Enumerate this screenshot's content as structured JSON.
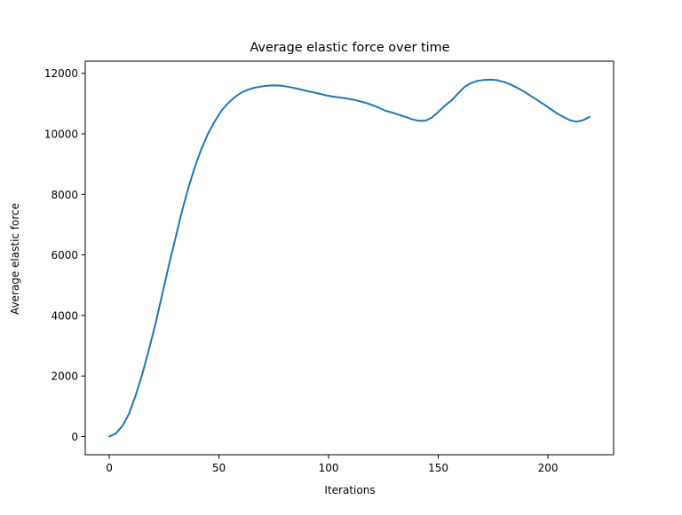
{
  "chart_data": {
    "type": "line",
    "title": "Average elastic force over time",
    "xlabel": "Iterations",
    "ylabel": "Average elastic force",
    "xlim": [
      -10.95,
      229.95
    ],
    "ylim": [
      -600,
      12400
    ],
    "xticks": [
      0,
      50,
      100,
      150,
      200
    ],
    "yticks": [
      0,
      2000,
      4000,
      6000,
      8000,
      10000,
      12000
    ],
    "grid": false,
    "legend": "none",
    "series": [
      {
        "color": "#1f77b4",
        "x": [
          0,
          3,
          6,
          9,
          12,
          15,
          18,
          21,
          24,
          27,
          30,
          33,
          36,
          39,
          42,
          45,
          48,
          51,
          54,
          57,
          60,
          63,
          66,
          69,
          72,
          75,
          78,
          81,
          84,
          87,
          90,
          93,
          96,
          99,
          102,
          105,
          108,
          111,
          114,
          117,
          120,
          123,
          126,
          129,
          132,
          135,
          138,
          141,
          144,
          147,
          150,
          153,
          156,
          159,
          162,
          165,
          168,
          171,
          174,
          177,
          180,
          183,
          186,
          189,
          192,
          195,
          198,
          201,
          204,
          207,
          210,
          213,
          216,
          219
        ],
        "y": [
          0,
          100,
          350,
          750,
          1350,
          2050,
          2850,
          3700,
          4650,
          5600,
          6500,
          7400,
          8200,
          8900,
          9500,
          10000,
          10400,
          10750,
          11000,
          11200,
          11350,
          11450,
          11520,
          11560,
          11590,
          11600,
          11590,
          11560,
          11520,
          11470,
          11420,
          11370,
          11320,
          11270,
          11230,
          11200,
          11170,
          11130,
          11080,
          11020,
          10950,
          10860,
          10760,
          10700,
          10630,
          10560,
          10480,
          10430,
          10430,
          10530,
          10720,
          10930,
          11100,
          11330,
          11550,
          11680,
          11750,
          11780,
          11790,
          11770,
          11710,
          11630,
          11520,
          11400,
          11260,
          11120,
          10980,
          10830,
          10680,
          10560,
          10450,
          10400,
          10450,
          10560
        ]
      }
    ]
  }
}
